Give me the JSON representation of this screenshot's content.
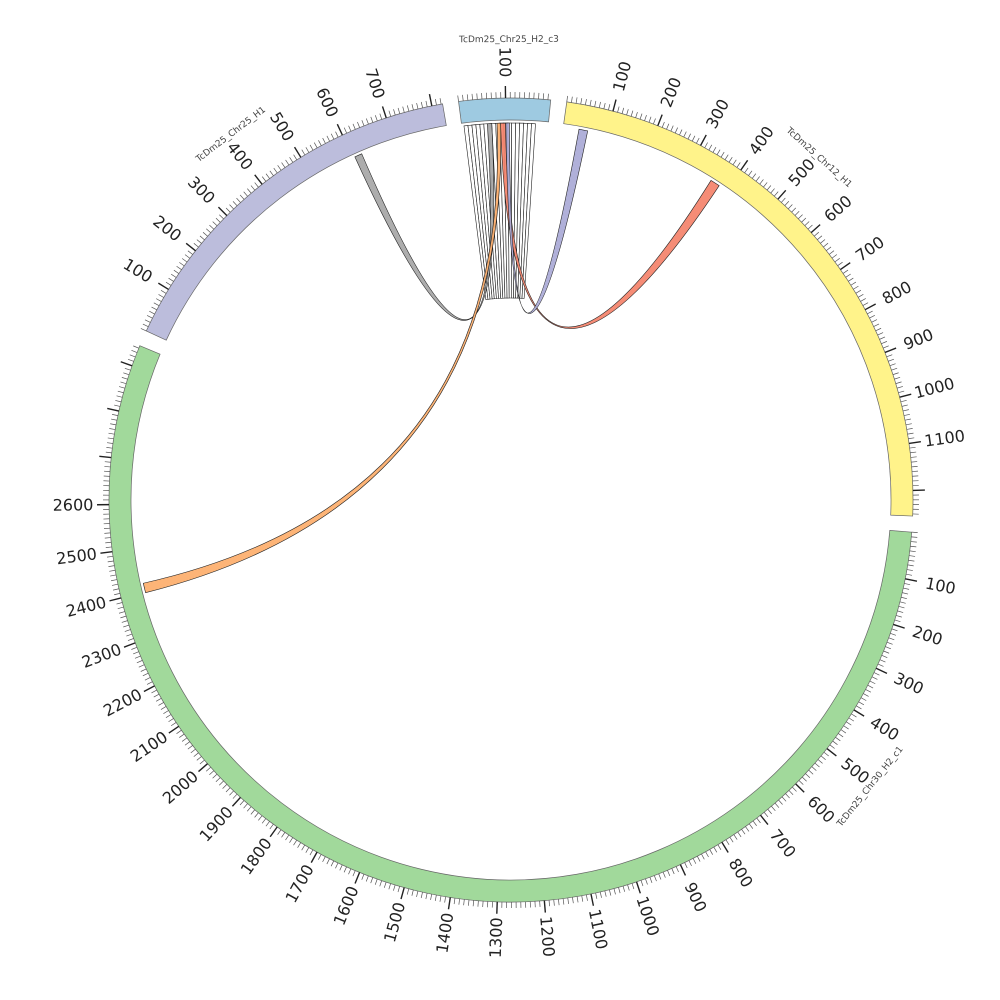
{
  "chart_data": {
    "type": "chord",
    "unit": "bp",
    "segments": [
      {
        "id": "c3",
        "name": "TcDm25_Chr25_H2_c3",
        "length": 175,
        "color": "#9ecae1",
        "labels": [
          "100"
        ]
      },
      {
        "id": "chr12",
        "name": "TcDm25_Chr12_H1",
        "length": 1120,
        "color": "#fff38a",
        "labels": [
          "100",
          "200",
          "300",
          "400",
          "500",
          "600",
          "700",
          "800",
          "900",
          "1000",
          "1100"
        ]
      },
      {
        "id": "c1",
        "name": "TcDm25_Chr30_H2_c1",
        "length": 2630,
        "color": "#a1d99b",
        "labels": [
          "100",
          "200",
          "300",
          "400",
          "500",
          "600",
          "700",
          "800",
          "900",
          "1000",
          "1100",
          "1200",
          "1300",
          "1400",
          "1500",
          "1600",
          "1700",
          "1800",
          "1900",
          "2000",
          "2100",
          "2200",
          "2300",
          "2400",
          "2500",
          "2600"
        ]
      },
      {
        "id": "h1",
        "name": "TcDm25_Chr25_H1",
        "length": 735,
        "color": "#bcbddc",
        "labels": [
          "100",
          "200",
          "300",
          "400",
          "500",
          "600",
          "700"
        ]
      }
    ],
    "links": [
      {
        "a": "c3",
        "a1": 5,
        "a2": 14,
        "b": "c3",
        "b1": 5,
        "b2": 14,
        "color": "#ffffff"
      },
      {
        "a": "c3",
        "a1": 14,
        "a2": 23,
        "b": "c3",
        "b1": 14,
        "b2": 23,
        "color": "#ffffff"
      },
      {
        "a": "c3",
        "a1": 23,
        "a2": 32,
        "b": "c3",
        "b1": 23,
        "b2": 32,
        "color": "#ffffff"
      },
      {
        "a": "c3",
        "a1": 32,
        "a2": 41,
        "b": "c3",
        "b1": 32,
        "b2": 41,
        "color": "#ffffff"
      },
      {
        "a": "c3",
        "a1": 41,
        "a2": 50,
        "b": "c3",
        "b1": 41,
        "b2": 50,
        "color": "#ffffff"
      },
      {
        "a": "c3",
        "a1": 50,
        "a2": 59,
        "b": "c3",
        "b1": 50,
        "b2": 59,
        "color": "#ffffff"
      },
      {
        "a": "c3",
        "a1": 59,
        "a2": 68,
        "b": "c3",
        "b1": 59,
        "b2": 68,
        "color": "#ffffff"
      },
      {
        "a": "c3",
        "a1": 68,
        "a2": 77,
        "b": "c3",
        "b1": 68,
        "b2": 77,
        "color": "#ffffff"
      },
      {
        "a": "c3",
        "a1": 77,
        "a2": 86,
        "b": "c3",
        "b1": 77,
        "b2": 86,
        "color": "#ffffff"
      },
      {
        "a": "c3",
        "a1": 86,
        "a2": 95,
        "b": "c3",
        "b1": 86,
        "b2": 95,
        "color": "#ffffff"
      },
      {
        "a": "c3",
        "a1": 95,
        "a2": 104,
        "b": "c3",
        "b1": 95,
        "b2": 104,
        "color": "#ffffff"
      },
      {
        "a": "c3",
        "a1": 104,
        "a2": 113,
        "b": "c3",
        "b1": 104,
        "b2": 113,
        "color": "#ffffff"
      },
      {
        "a": "c3",
        "a1": 113,
        "a2": 122,
        "b": "c3",
        "b1": 113,
        "b2": 122,
        "color": "#ffffff"
      },
      {
        "a": "c3",
        "a1": 122,
        "a2": 131,
        "b": "c3",
        "b1": 122,
        "b2": 131,
        "color": "#ffffff"
      },
      {
        "a": "c3",
        "a1": 131,
        "a2": 140,
        "b": "c3",
        "b1": 131,
        "b2": 140,
        "color": "#ffffff"
      },
      {
        "a": "c3",
        "a1": 140,
        "a2": 149,
        "b": "c3",
        "b1": 140,
        "b2": 149,
        "color": "#ffffff"
      },
      {
        "a": "c3",
        "a1": 149,
        "a2": 158,
        "b": "c3",
        "b1": 149,
        "b2": 158,
        "color": "#ffffff"
      },
      {
        "a": "c3",
        "a1": 158,
        "a2": 167,
        "b": "c3",
        "b1": 158,
        "b2": 167,
        "color": "#ffffff"
      },
      {
        "a": "h1",
        "a1": 605,
        "a2": 622,
        "b": "c3",
        "b1": 58,
        "b2": 68,
        "color": "#a6a6a6"
      },
      {
        "a": "c3",
        "a1": 88,
        "a2": 99,
        "b": "chr12",
        "b1": 358,
        "b2": 380,
        "color": "#f4826a"
      },
      {
        "a": "c3",
        "a1": 80,
        "a2": 88,
        "b": "c1",
        "b1": 2398,
        "b2": 2420,
        "color": "#fdae6b"
      },
      {
        "a": "c3",
        "a1": 100,
        "a2": 108,
        "b": "chr12",
        "b1": 36,
        "b2": 56,
        "color": "#a9a9d6"
      }
    ]
  }
}
